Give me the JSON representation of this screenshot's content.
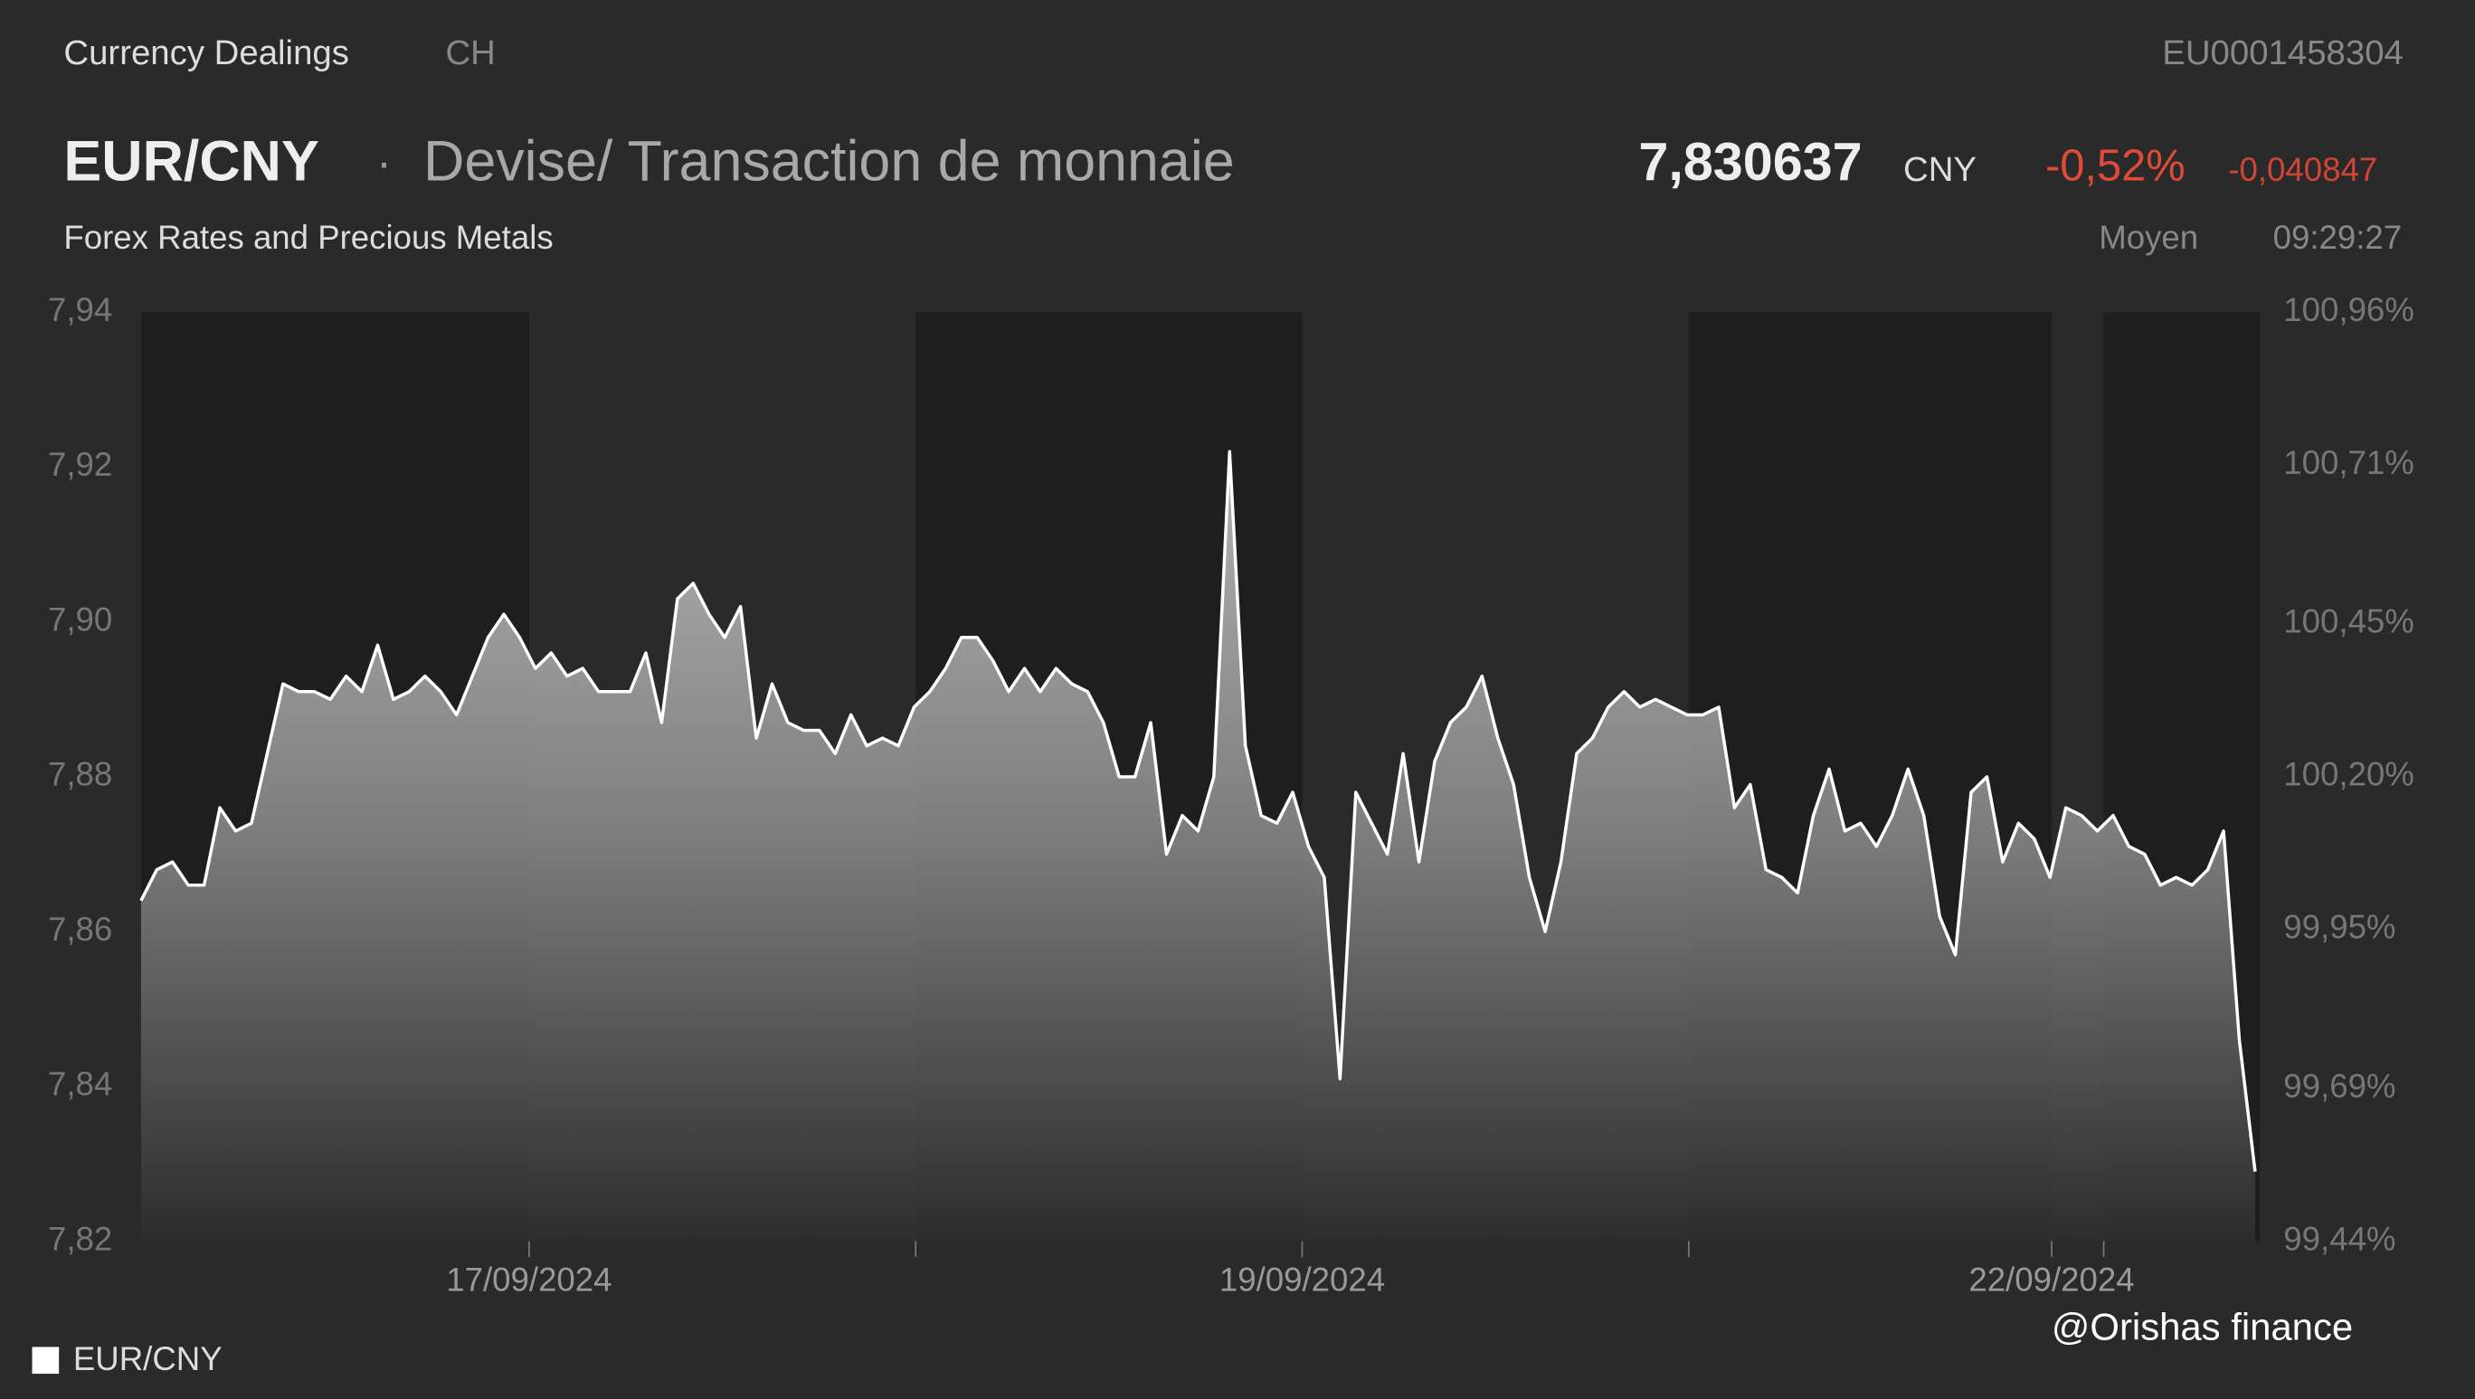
{
  "header": {
    "source": "Currency Dealings",
    "country": "CH",
    "isin": "EU0001458304",
    "instrument": "EUR/CNY",
    "separator": "·",
    "instrument_type": "Devise/ Transaction de monnaie",
    "price": "7,830637",
    "currency": "CNY",
    "change_percent": "-0,52%",
    "change": "-0,040847",
    "market": "Forex Rates and Precious Metals",
    "price_type": "Moyen",
    "time": "09:29:27"
  },
  "watermark": "@Orishas finance",
  "chart_data": {
    "type": "area",
    "series": [
      {
        "name": "EUR/CNY",
        "color": "#ffffff",
        "values": [
          7.864,
          7.868,
          7.869,
          7.866,
          7.866,
          7.876,
          7.873,
          7.874,
          7.883,
          7.892,
          7.891,
          7.891,
          7.89,
          7.893,
          7.891,
          7.897,
          7.89,
          7.891,
          7.893,
          7.891,
          7.888,
          7.893,
          7.898,
          7.901,
          7.898,
          7.894,
          7.896,
          7.893,
          7.894,
          7.891,
          7.891,
          7.891,
          7.896,
          7.887,
          7.903,
          7.905,
          7.901,
          7.898,
          7.902,
          7.885,
          7.892,
          7.887,
          7.886,
          7.886,
          7.883,
          7.888,
          7.884,
          7.885,
          7.884,
          7.889,
          7.891,
          7.894,
          7.898,
          7.898,
          7.895,
          7.891,
          7.894,
          7.891,
          7.894,
          7.892,
          7.891,
          7.887,
          7.88,
          7.88,
          7.887,
          7.87,
          7.875,
          7.873,
          7.88,
          7.922,
          7.884,
          7.875,
          7.874,
          7.878,
          7.871,
          7.867,
          7.841,
          7.878,
          7.874,
          7.87,
          7.883,
          7.869,
          7.882,
          7.887,
          7.889,
          7.893,
          7.885,
          7.879,
          7.867,
          7.86,
          7.869,
          7.883,
          7.885,
          7.889,
          7.891,
          7.889,
          7.89,
          7.889,
          7.888,
          7.888,
          7.889,
          7.876,
          7.879,
          7.868,
          7.867,
          7.865,
          7.875,
          7.881,
          7.873,
          7.874,
          7.871,
          7.875,
          7.881,
          7.875,
          7.862,
          7.857,
          7.878,
          7.88,
          7.869,
          7.874,
          7.872,
          7.867,
          7.876,
          7.875,
          7.873,
          7.875,
          7.871,
          7.87,
          7.866,
          7.867,
          7.866,
          7.868,
          7.873,
          7.846,
          7.829
        ]
      }
    ],
    "xlim": [
      0,
      134.3
    ],
    "xticks": [
      {
        "value": 24.6,
        "label": "17/09/2024"
      },
      {
        "value": 49.1,
        "label": null
      },
      {
        "value": 73.6,
        "label": "19/09/2024"
      },
      {
        "value": 98.1,
        "label": null
      },
      {
        "value": 121.1,
        "label": "22/09/2024"
      },
      {
        "value": 124.4,
        "label": null
      }
    ],
    "ylim": [
      7.82,
      7.94
    ],
    "yticks": [
      {
        "value": 7.82,
        "label": "7,82"
      },
      {
        "value": 7.84,
        "label": "7,84"
      },
      {
        "value": 7.86,
        "label": "7,86"
      },
      {
        "value": 7.88,
        "label": "7,88"
      },
      {
        "value": 7.9,
        "label": "7,90"
      },
      {
        "value": 7.92,
        "label": "7,92"
      },
      {
        "value": 7.94,
        "label": "7,94"
      }
    ],
    "y2lim": [
      99.44,
      100.96
    ],
    "y2ticks": [
      {
        "value": 99.44,
        "label": "99,44%"
      },
      {
        "value": 99.69,
        "label": "99,69%"
      },
      {
        "value": 99.95,
        "label": "99,95%"
      },
      {
        "value": 100.2,
        "label": "100,20%"
      },
      {
        "value": 100.45,
        "label": "100,45%"
      },
      {
        "value": 100.71,
        "label": "100,71%"
      },
      {
        "value": 100.96,
        "label": "100,96%"
      }
    ],
    "grid": false,
    "legend": "bottom-left"
  }
}
